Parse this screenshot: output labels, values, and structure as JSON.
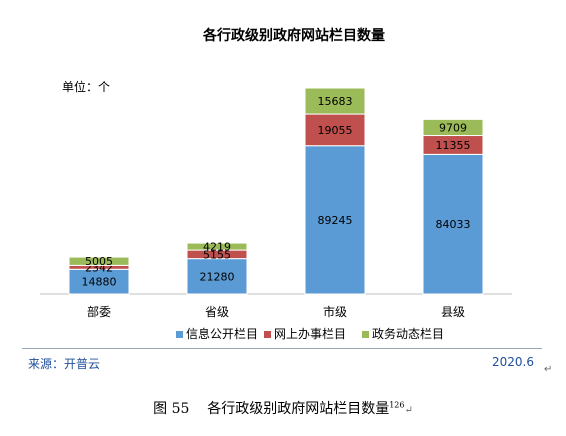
{
  "chart_data": {
    "type": "bar",
    "stacked": true,
    "title": "各行政级别政府网站栏目数量",
    "unit_label": "单位：个",
    "categories": [
      "部委",
      "省级",
      "市级",
      "县级"
    ],
    "series": [
      {
        "name": "信息公开栏目",
        "color": "#5b9bd5",
        "values": [
          14880,
          21280,
          89245,
          84033
        ]
      },
      {
        "name": "网上办事栏目",
        "color": "#c0504d",
        "values": [
          2342,
          5155,
          19055,
          11355
        ]
      },
      {
        "name": "政务动态栏目",
        "color": "#9bbb59",
        "values": [
          5005,
          4219,
          15683,
          9709
        ]
      }
    ],
    "legend_position": "bottom",
    "grid": false
  },
  "source": {
    "label": "来源：开普云",
    "date": "2020.6"
  },
  "caption": {
    "prefix": "图  55",
    "text": "各行政级别政府网站栏目数量",
    "footnote": "126",
    "mark": "↵"
  }
}
